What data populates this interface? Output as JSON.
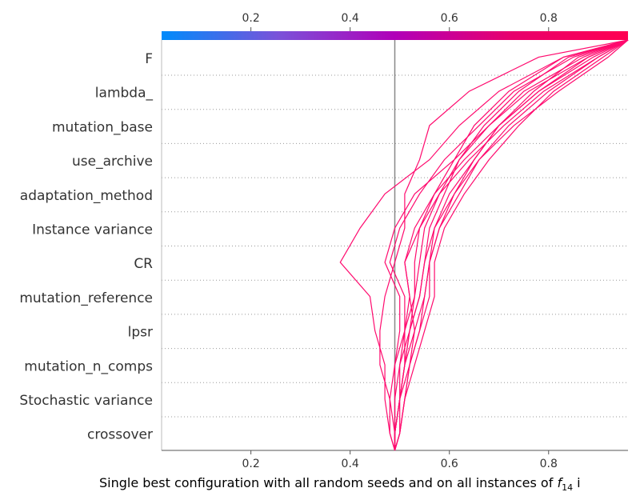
{
  "chart_data": {
    "type": "line",
    "title": "",
    "xlabel": "Single best configuration with all random seeds and on all instances of ",
    "xlabel_math": "f",
    "xlabel_sub": "14",
    "xlabel_tail": " i",
    "ylabel": "",
    "xlim": [
      0.02,
      0.96
    ],
    "xticks": [
      0.2,
      0.4,
      0.6,
      0.8
    ],
    "tick_labels": [
      "0.2",
      "0.4",
      "0.6",
      "0.8"
    ],
    "base_value": 0.49,
    "features": [
      "F",
      "lambda_",
      "mutation_base",
      "use_archive",
      "adaptation_method",
      "Instance variance",
      "CR",
      "mutation_reference",
      "lpsr",
      "mutation_n_comps",
      "Stochastic variance",
      "crossover"
    ],
    "colorbar": {
      "stops": [
        "#008bfb",
        "#7a52d9",
        "#b100b8",
        "#e8006d",
        "#ff0051"
      ],
      "range": [
        0.02,
        0.96
      ]
    },
    "grid": "dotted horizontal per feature",
    "line_color": "#ff0a6e",
    "series": [
      {
        "values": [
          0.49,
          0.49,
          0.48,
          0.46,
          0.46,
          0.47,
          0.49,
          0.51,
          0.51,
          0.54,
          0.56,
          0.64,
          0.78,
          0.96
        ]
      },
      {
        "values": [
          0.49,
          0.48,
          0.47,
          0.47,
          0.45,
          0.44,
          0.38,
          0.42,
          0.47,
          0.56,
          0.62,
          0.7,
          0.83,
          0.96
        ]
      },
      {
        "values": [
          0.49,
          0.49,
          0.49,
          0.49,
          0.5,
          0.5,
          0.47,
          0.49,
          0.53,
          0.61,
          0.68,
          0.75,
          0.87,
          0.96
        ]
      },
      {
        "values": [
          0.49,
          0.5,
          0.5,
          0.51,
          0.51,
          0.51,
          0.48,
          0.5,
          0.54,
          0.59,
          0.66,
          0.73,
          0.85,
          0.96
        ]
      },
      {
        "values": [
          0.49,
          0.5,
          0.51,
          0.52,
          0.53,
          0.52,
          0.51,
          0.53,
          0.57,
          0.63,
          0.7,
          0.78,
          0.89,
          0.96
        ]
      },
      {
        "values": [
          0.49,
          0.49,
          0.5,
          0.51,
          0.52,
          0.53,
          0.53,
          0.54,
          0.58,
          0.64,
          0.71,
          0.79,
          0.9,
          0.96
        ]
      },
      {
        "values": [
          0.49,
          0.48,
          0.48,
          0.49,
          0.51,
          0.53,
          0.54,
          0.55,
          0.58,
          0.62,
          0.68,
          0.76,
          0.88,
          0.96
        ]
      },
      {
        "values": [
          0.49,
          0.5,
          0.51,
          0.53,
          0.55,
          0.57,
          0.57,
          0.59,
          0.63,
          0.68,
          0.74,
          0.81,
          0.91,
          0.96
        ]
      },
      {
        "values": [
          0.49,
          0.49,
          0.5,
          0.52,
          0.54,
          0.56,
          0.56,
          0.58,
          0.62,
          0.66,
          0.72,
          0.8,
          0.9,
          0.96
        ]
      },
      {
        "values": [
          0.49,
          0.5,
          0.51,
          0.52,
          0.54,
          0.55,
          0.56,
          0.57,
          0.6,
          0.65,
          0.7,
          0.78,
          0.88,
          0.96
        ]
      },
      {
        "values": [
          0.49,
          0.49,
          0.5,
          0.51,
          0.53,
          0.55,
          0.56,
          0.58,
          0.61,
          0.65,
          0.7,
          0.77,
          0.86,
          0.96
        ]
      },
      {
        "values": [
          0.49,
          0.49,
          0.5,
          0.51,
          0.52,
          0.54,
          0.55,
          0.56,
          0.59,
          0.62,
          0.67,
          0.74,
          0.84,
          0.96
        ]
      },
      {
        "values": [
          0.49,
          0.49,
          0.5,
          0.5,
          0.51,
          0.52,
          0.51,
          0.54,
          0.57,
          0.61,
          0.65,
          0.72,
          0.83,
          0.96
        ]
      },
      {
        "values": [
          0.49,
          0.49,
          0.49,
          0.5,
          0.52,
          0.54,
          0.55,
          0.57,
          0.61,
          0.66,
          0.73,
          0.82,
          0.92,
          0.96
        ]
      }
    ]
  }
}
